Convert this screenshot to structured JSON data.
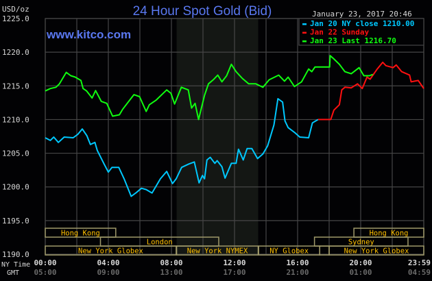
{
  "chart_data": {
    "type": "line",
    "title": "24 Hour Spot Gold (Bid)",
    "ylabel": "USD/oz",
    "timestamp": "January 23, 2017 20:46",
    "watermark": "www.kitco.com",
    "ylim": [
      1190,
      1225
    ],
    "yticks": [
      "1225.0",
      "1220.0",
      "1215.0",
      "1210.0",
      "1205.0",
      "1200.0",
      "1195.0",
      "1190.0"
    ],
    "ytick_values": [
      1225,
      1220,
      1215,
      1210,
      1205,
      1200,
      1195,
      1190
    ],
    "xlim_hours": [
      0,
      24
    ],
    "grid": true,
    "x_row_labels": {
      "ny": "NY Time",
      "gmt": "GMT"
    },
    "xticks_ny": [
      "00:00",
      "04:00",
      "08:00",
      "12:00",
      "16:00",
      "20:00",
      "23:59"
    ],
    "xticks_gmt": [
      "05:00",
      "09:00",
      "13:00",
      "17:00",
      "21:00",
      "01:00",
      "04:59"
    ],
    "xtick_hours": [
      0,
      4,
      8,
      12,
      16,
      20,
      24
    ],
    "shaded_session_hours": [
      8.33,
      13.5
    ],
    "legend_placement": "top-right",
    "legend": [
      {
        "label": "Jan 20 NY close 1210.00",
        "color": "#00c8ff"
      },
      {
        "label": "Jan 22 Sunday",
        "color": "#ff1010"
      },
      {
        "label": "Jan 23 Last 1216.70",
        "color": "#10ff10"
      }
    ],
    "series": [
      {
        "name": "Jan 20",
        "color": "#00c8ff",
        "x": [
          0,
          0.32,
          0.54,
          0.83,
          1.2,
          1.77,
          2.06,
          2.35,
          2.64,
          2.86,
          3.15,
          3.3,
          3.73,
          4.0,
          4.23,
          4.66,
          5.0,
          5.45,
          5.74,
          6.1,
          6.4,
          6.77,
          7.3,
          7.7,
          8.07,
          8.3,
          8.65,
          9.1,
          9.45,
          9.75,
          9.97,
          10.1,
          10.25,
          10.46,
          10.75,
          10.9,
          11.2,
          11.4,
          11.8,
          12.1,
          12.25,
          12.55,
          12.8,
          13.1,
          13.46,
          13.8,
          14.1,
          14.5,
          14.75,
          15.05,
          15.2,
          15.4,
          15.85,
          16.14,
          16.7,
          16.94,
          17.3
        ],
        "y": [
          1207.3,
          1206.9,
          1207.4,
          1206.6,
          1207.4,
          1207.3,
          1207.8,
          1208.6,
          1207.6,
          1206.3,
          1206.6,
          1205.4,
          1203.4,
          1202.2,
          1202.9,
          1202.9,
          1201.2,
          1198.6,
          1199.1,
          1199.8,
          1199.6,
          1199.1,
          1201.2,
          1202.3,
          1200.5,
          1201.2,
          1202.9,
          1203.4,
          1203.7,
          1200.6,
          1201.7,
          1201.2,
          1204.0,
          1204.4,
          1203.5,
          1203.9,
          1203.0,
          1201.3,
          1203.5,
          1203.5,
          1205.6,
          1204.0,
          1205.7,
          1205.7,
          1204.2,
          1204.9,
          1206.1,
          1209.2,
          1213.1,
          1212.6,
          1209.8,
          1208.8,
          1208.0,
          1207.4,
          1207.3,
          1209.5,
          1210.0
        ]
      },
      {
        "name": "Jan 22",
        "color": "#ff1010",
        "x": [
          17.3,
          18.1,
          18.3,
          18.65,
          18.8,
          19.0,
          19.4,
          19.8,
          20.1,
          20.4,
          20.6,
          21.05,
          21.4,
          21.6,
          22.05,
          22.25,
          22.6,
          23.1,
          23.2,
          23.65,
          24
        ],
        "y": [
          1210.0,
          1210.0,
          1211.4,
          1212.2,
          1214.4,
          1214.8,
          1214.7,
          1215.3,
          1214.6,
          1216.3,
          1216.0,
          1217.5,
          1218.5,
          1218.0,
          1217.7,
          1218.1,
          1217.1,
          1216.6,
          1215.6,
          1215.8,
          1214.6
        ]
      },
      {
        "name": "Jan 23",
        "color": "#10ff10",
        "x": [
          0,
          0.32,
          0.68,
          0.9,
          1.33,
          1.62,
          1.9,
          2.26,
          2.4,
          2.62,
          2.97,
          3.19,
          3.55,
          3.9,
          4.27,
          4.7,
          4.9,
          5.26,
          5.62,
          5.98,
          6.4,
          6.6,
          7.04,
          7.7,
          7.97,
          8.2,
          8.63,
          9.07,
          9.28,
          9.5,
          9.72,
          10.1,
          10.35,
          10.65,
          10.94,
          11.2,
          11.5,
          11.8,
          12.1,
          12.5,
          12.9,
          13.35,
          13.8,
          14.2,
          14.8,
          15.17,
          15.4,
          15.8,
          16.25,
          16.7,
          16.9,
          17.1,
          18.03,
          18.06,
          18.3,
          18.65,
          19.0,
          19.4,
          19.9,
          20.2,
          20.55,
          20.77
        ],
        "y": [
          1214.25,
          1214.6,
          1214.8,
          1215.3,
          1217.0,
          1216.5,
          1216.3,
          1215.8,
          1214.6,
          1214.25,
          1213.2,
          1214.3,
          1212.7,
          1212.4,
          1210.5,
          1210.7,
          1211.5,
          1212.6,
          1213.7,
          1213.4,
          1211.2,
          1212.2,
          1212.9,
          1214.4,
          1213.9,
          1212.3,
          1214.8,
          1214.4,
          1211.7,
          1212.4,
          1210.0,
          1213.6,
          1215.3,
          1215.9,
          1216.6,
          1215.6,
          1216.5,
          1218.2,
          1217.1,
          1216.1,
          1215.3,
          1215.3,
          1214.8,
          1215.9,
          1216.6,
          1215.7,
          1216.3,
          1214.9,
          1215.6,
          1217.5,
          1217.1,
          1217.8,
          1217.8,
          1219.5,
          1219.0,
          1218.2,
          1217.1,
          1216.8,
          1217.7,
          1216.5,
          1216.5,
          1216.7
        ]
      }
    ],
    "sessions": [
      {
        "label": "Hong Kong",
        "row": 0,
        "start": 0,
        "end": 4.47
      },
      {
        "label": "Hong Kong",
        "row": 0,
        "start": 19.57,
        "end": 24
      },
      {
        "label": "London",
        "row": 1,
        "start": 3.5,
        "end": 11.0
      },
      {
        "label": "Sydney",
        "row": 1,
        "start": 17.07,
        "end": 23.0
      },
      {
        "label": "New York Globex",
        "row": 2,
        "start": 0,
        "end": 8.3
      },
      {
        "label": "New York NYMEX",
        "row": 2,
        "start": 8.33,
        "end": 13.5
      },
      {
        "label": "NY Globex",
        "row": 2,
        "start": 13.53,
        "end": 17.4
      },
      {
        "label": "",
        "row": 2,
        "start": 17.4,
        "end": 18.0
      },
      {
        "label": "New York Globex",
        "row": 2,
        "start": 18.0,
        "end": 24
      }
    ],
    "colors": {
      "background": "#020204",
      "grid": "#464646",
      "title": "#5a78f0",
      "session_border": "#a09a6a",
      "session_text": "#ffc000",
      "axis_text": "#d8d8d8",
      "gmt_text": "#6a6a6a"
    }
  }
}
